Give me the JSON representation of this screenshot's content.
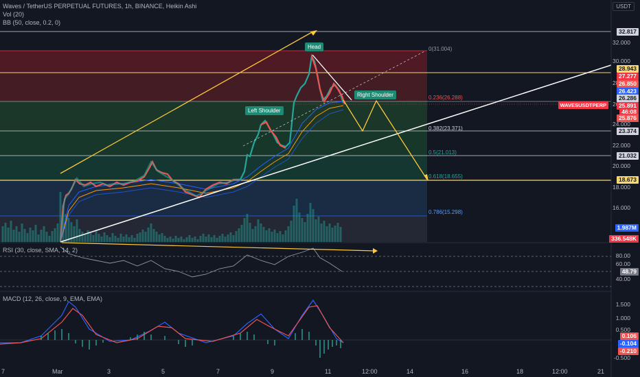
{
  "header": {
    "title": "Waves / TetherUS PERPETUAL FUTURES, 1h, BINANCE, Heikin Ashi",
    "vol_indicator": "Vol (20)",
    "bb_indicator": "BB (50, close, 0.2, 0)",
    "currency": "USDT"
  },
  "price_axis": [
    "32.000",
    "30.000",
    "28.000",
    "26.000",
    "24.000",
    "22.000",
    "20.000",
    "18.000",
    "16.000"
  ],
  "price_tags": {
    "t32817": "32.817",
    "t28943": "28.943",
    "t27277": "27.277",
    "t26850": "26.850",
    "t26423": "26.423",
    "t26286": "26.286",
    "t25891": "25.891",
    "countdown": "46:08",
    "t25876": "25.876",
    "t23374": "23.374",
    "t21032": "21.032",
    "t18673": "18.673",
    "vol1": "1.987M",
    "vol2": "336.548K",
    "symbol": "WAVESUSDTPERP"
  },
  "fib_levels": {
    "f0": "0(31.004)",
    "f236": "0.236(26.288)",
    "f382": "0.382(23.371)",
    "f5": "0.5(21.013)",
    "f618": "0.618(18.655)",
    "f786": "0.786(15.298)"
  },
  "pattern_labels": {
    "head": "Head",
    "left_shoulder": "Left Shoulder",
    "right_shoulder": "Right Shoulder"
  },
  "rsi": {
    "title": "RSI (30, close, SMA, 14, 2)",
    "axis": [
      "80.00",
      "60.00",
      "40.00"
    ],
    "value": "48.79"
  },
  "macd": {
    "title": "MACD (12, 26, close, 9, EMA, EMA)",
    "axis": [
      "1.500",
      "1.000",
      "0.500",
      "-0.500"
    ],
    "v1": "0.106",
    "v2": "-0.104",
    "v3": "-0.210"
  },
  "time_axis": [
    "7",
    "Mar",
    "3",
    "5",
    "7",
    "9",
    "11",
    "12:00",
    "14",
    "16",
    "18",
    "12:00",
    "21"
  ],
  "colors": {
    "background": "#131722",
    "bull": "#26a69a",
    "bear": "#ef5350",
    "fib_red": "#f23645",
    "fib_yellow": "#f7d774",
    "trendline": "#ffffff",
    "arrow": "#ffc93c"
  }
}
